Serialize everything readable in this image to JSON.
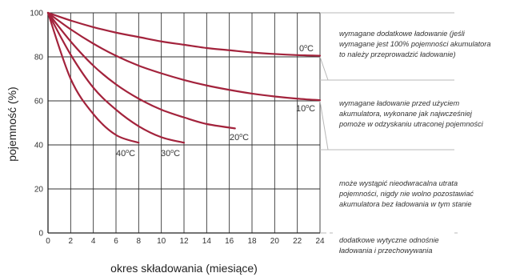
{
  "chart_data": {
    "type": "line",
    "xlabel": "okres składowania (miesiące)",
    "ylabel": "pojemność (%)",
    "xlim": [
      0,
      24
    ],
    "ylim": [
      0,
      100
    ],
    "xticks": [
      "0",
      "2",
      "4",
      "6",
      "8",
      "10",
      "12",
      "14",
      "16",
      "18",
      "20",
      "22",
      "24"
    ],
    "yticks": [
      "0",
      "20",
      "40",
      "60",
      "80",
      "100"
    ],
    "grid": true,
    "line_color": "#a3233c",
    "series": [
      {
        "name": "0°C",
        "name_main": "0",
        "name_sup": "o",
        "name_tail": "C",
        "x": [
          0,
          2,
          4,
          6,
          8,
          10,
          12,
          14,
          16,
          18,
          20,
          22,
          24
        ],
        "y": [
          100,
          96.5,
          93.5,
          91,
          89,
          87,
          85.5,
          84,
          83,
          82,
          81.3,
          80.8,
          80.5
        ]
      },
      {
        "name": "10°C",
        "name_main": "10",
        "name_sup": "o",
        "name_tail": "C",
        "x": [
          0,
          2,
          4,
          6,
          8,
          10,
          12,
          14,
          16,
          18,
          20,
          22,
          24
        ],
        "y": [
          100,
          92.5,
          86,
          80.5,
          76,
          72.5,
          69.5,
          67,
          65,
          63.3,
          62,
          61,
          60.3
        ]
      },
      {
        "name": "20°C",
        "name_main": "20",
        "name_sup": "o",
        "name_tail": "C",
        "x": [
          0,
          2,
          4,
          6,
          8,
          10,
          12,
          14,
          16.5
        ],
        "y": [
          100,
          87,
          76,
          67.5,
          61,
          56,
          52.5,
          49.5,
          47.5
        ]
      },
      {
        "name": "30°C",
        "name_main": "30",
        "name_sup": "o",
        "name_tail": "C",
        "x": [
          0,
          2,
          4,
          6,
          8,
          10,
          12
        ],
        "y": [
          100,
          81,
          66,
          56,
          48.5,
          43.5,
          41
        ]
      },
      {
        "name": "40°C",
        "name_main": "40",
        "name_sup": "o",
        "name_tail": "C",
        "x": [
          0,
          2,
          4,
          6,
          8
        ],
        "y": [
          100,
          70,
          54,
          44.5,
          41
        ]
      }
    ],
    "annotations": [
      {
        "lines": [
          "wymagane dodatkowe ładowanie (jeśli",
          "wymagane jest 100% pojemności akumulatora",
          "to należy przeprowadzić ładowanie)"
        ]
      },
      {
        "lines": [
          "wymagane ładowanie przed użyciem",
          "akumulatora, wykonane jak najwcześniej",
          "pomoże w odzyskaniu utraconej pojemności"
        ]
      },
      {
        "lines": [
          "może wystąpić nieodwracalna utrata",
          "pojemności, nigdy nie wolno pozostawiać",
          "akumulatora bez ładowania w tym stanie"
        ]
      },
      {
        "lines": [
          "dodatkowe wytyczne odnośnie",
          "ładowania i przechowywania"
        ]
      }
    ]
  }
}
